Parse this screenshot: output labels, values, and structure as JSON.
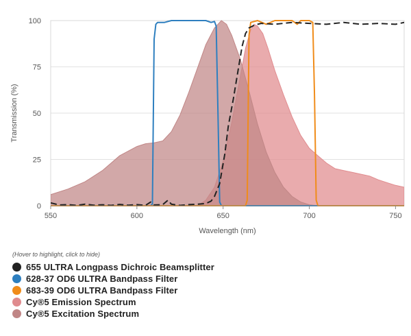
{
  "chart_data": {
    "type": "area",
    "xlabel": "Wavelength (nm)",
    "ylabel": "Transmission (%)",
    "xlim": [
      550,
      755
    ],
    "ylim": [
      0,
      100
    ],
    "xticks": [
      550,
      600,
      650,
      700,
      750
    ],
    "yticks": [
      0,
      25,
      50,
      75,
      100
    ],
    "grid": "horizontal",
    "series": [
      {
        "name": "Cy®5 Excitation Spectrum",
        "style": "area",
        "color": "#c08686",
        "points": [
          [
            550,
            6
          ],
          [
            560,
            9
          ],
          [
            570,
            13
          ],
          [
            580,
            19
          ],
          [
            590,
            27
          ],
          [
            600,
            32
          ],
          [
            605,
            33.5
          ],
          [
            610,
            34
          ],
          [
            615,
            35
          ],
          [
            620,
            40
          ],
          [
            625,
            49
          ],
          [
            630,
            61
          ],
          [
            635,
            74
          ],
          [
            640,
            87
          ],
          [
            645,
            96
          ],
          [
            649,
            100
          ],
          [
            652,
            98
          ],
          [
            655,
            92
          ],
          [
            660,
            79
          ],
          [
            665,
            62
          ],
          [
            670,
            44
          ],
          [
            675,
            29
          ],
          [
            680,
            18
          ],
          [
            685,
            10
          ],
          [
            690,
            5
          ],
          [
            695,
            2
          ],
          [
            700,
            0.5
          ],
          [
            705,
            0
          ]
        ]
      },
      {
        "name": "Cy®5 Emission Spectrum",
        "style": "area",
        "color": "#e08b8e",
        "points": [
          [
            635,
            0
          ],
          [
            640,
            3
          ],
          [
            645,
            10
          ],
          [
            650,
            24
          ],
          [
            655,
            45
          ],
          [
            660,
            70
          ],
          [
            663,
            85
          ],
          [
            666,
            95
          ],
          [
            668,
            98
          ],
          [
            670,
            97
          ],
          [
            673,
            93
          ],
          [
            676,
            85
          ],
          [
            680,
            73
          ],
          [
            685,
            60
          ],
          [
            690,
            48
          ],
          [
            695,
            38
          ],
          [
            700,
            31
          ],
          [
            705,
            27
          ],
          [
            710,
            23
          ],
          [
            715,
            20
          ],
          [
            720,
            19
          ],
          [
            725,
            18
          ],
          [
            730,
            17
          ],
          [
            735,
            16
          ],
          [
            740,
            14
          ],
          [
            745,
            12.5
          ],
          [
            750,
            11
          ],
          [
            755,
            10
          ]
        ]
      },
      {
        "name": "628-37 OD6 ULTRA Bandpass Filter",
        "style": "line",
        "color": "#2e7fbf",
        "points": [
          [
            550,
            0
          ],
          [
            608,
            0
          ],
          [
            609,
            1
          ],
          [
            610,
            90
          ],
          [
            611,
            98
          ],
          [
            612,
            99
          ],
          [
            616,
            99
          ],
          [
            620,
            100
          ],
          [
            630,
            100
          ],
          [
            640,
            100
          ],
          [
            643,
            99
          ],
          [
            645,
            99.5
          ],
          [
            646,
            97
          ],
          [
            647,
            50
          ],
          [
            648,
            2
          ],
          [
            649,
            0
          ],
          [
            755,
            0
          ]
        ]
      },
      {
        "name": "683-39 OD6 ULTRA Bandpass Filter",
        "style": "line",
        "color": "#f08c1a",
        "points": [
          [
            550,
            0
          ],
          [
            663,
            0
          ],
          [
            664,
            3
          ],
          [
            665,
            92
          ],
          [
            666,
            99
          ],
          [
            670,
            100
          ],
          [
            675,
            98
          ],
          [
            680,
            100
          ],
          [
            690,
            100
          ],
          [
            693,
            98
          ],
          [
            695,
            100
          ],
          [
            700,
            100
          ],
          [
            702,
            99
          ],
          [
            703,
            60
          ],
          [
            704,
            3
          ],
          [
            705,
            0
          ],
          [
            755,
            0
          ]
        ]
      },
      {
        "name": "655 ULTRA Longpass Dichroic Beamsplitter",
        "style": "dashed",
        "color": "#222222",
        "points": [
          [
            550,
            1.5
          ],
          [
            555,
            0.4
          ],
          [
            560,
            0.6
          ],
          [
            565,
            0.2
          ],
          [
            570,
            0.8
          ],
          [
            575,
            0.3
          ],
          [
            580,
            0.5
          ],
          [
            585,
            0.2
          ],
          [
            590,
            0.7
          ],
          [
            595,
            0.3
          ],
          [
            600,
            0.6
          ],
          [
            605,
            0.2
          ],
          [
            608,
            2
          ],
          [
            610,
            0.4
          ],
          [
            615,
            0.6
          ],
          [
            618,
            3
          ],
          [
            620,
            0.8
          ],
          [
            625,
            0.2
          ],
          [
            630,
            0.6
          ],
          [
            635,
            0.8
          ],
          [
            640,
            1.2
          ],
          [
            643,
            2.5
          ],
          [
            645,
            5
          ],
          [
            648,
            12
          ],
          [
            651,
            28
          ],
          [
            653,
            43
          ],
          [
            656,
            58
          ],
          [
            659,
            75
          ],
          [
            661,
            86
          ],
          [
            663,
            93
          ],
          [
            665,
            96
          ],
          [
            668,
            97.5
          ],
          [
            672,
            98.5
          ],
          [
            680,
            98
          ],
          [
            690,
            99
          ],
          [
            700,
            98.5
          ],
          [
            710,
            98
          ],
          [
            720,
            99
          ],
          [
            730,
            98
          ],
          [
            740,
            98.5
          ],
          [
            750,
            98
          ],
          [
            755,
            99
          ]
        ]
      }
    ]
  },
  "legend": {
    "hint": "(Hover to highlight, click to hide)",
    "items": [
      {
        "label": "655 ULTRA Longpass Dichroic Beamsplitter",
        "color": "#222222"
      },
      {
        "label": "628-37 OD6 ULTRA Bandpass Filter",
        "color": "#2e7fbf"
      },
      {
        "label": "683-39 OD6 ULTRA Bandpass Filter",
        "color": "#f08c1a"
      },
      {
        "label": "Cy®5 Emission Spectrum",
        "color": "#e08b8e"
      },
      {
        "label": "Cy®5 Excitation Spectrum",
        "color": "#c08686"
      }
    ]
  }
}
